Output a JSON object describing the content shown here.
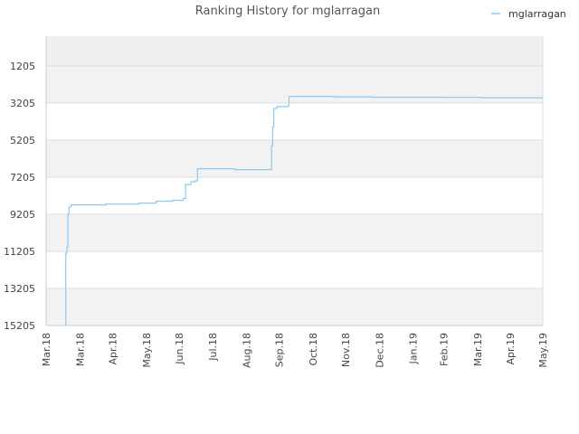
{
  "chart_data": {
    "type": "line",
    "title": "Ranking History for mglarragan",
    "legend": {
      "position": "top-right"
    },
    "grid": true,
    "xlabel": "",
    "ylabel": "",
    "x_axis": {
      "range": [
        "2018-03-01",
        "2019-05-31"
      ],
      "ticks": [
        {
          "date": "2018-03-01",
          "label": "Mar.18"
        },
        {
          "date": "2018-04-01",
          "label": "Mar.18"
        },
        {
          "date": "2018-05-01",
          "label": "Apr.18"
        },
        {
          "date": "2018-06-01",
          "label": "May.18"
        },
        {
          "date": "2018-07-01",
          "label": "Jun.18"
        },
        {
          "date": "2018-08-01",
          "label": "Jul.18"
        },
        {
          "date": "2018-09-01",
          "label": "Aug.18"
        },
        {
          "date": "2018-10-01",
          "label": "Sep.18"
        },
        {
          "date": "2018-11-01",
          "label": "Oct.18"
        },
        {
          "date": "2018-12-01",
          "label": "Nov.18"
        },
        {
          "date": "2019-01-01",
          "label": "Dec.18"
        },
        {
          "date": "2019-02-01",
          "label": "Jan.19"
        },
        {
          "date": "2019-03-01",
          "label": "Feb.19"
        },
        {
          "date": "2019-04-01",
          "label": "Mar.19"
        },
        {
          "date": "2019-05-01",
          "label": "Apr.19"
        },
        {
          "date": "2019-05-31",
          "label": "May.19"
        }
      ]
    },
    "y_axis": {
      "inverted": true,
      "range": [
        -400,
        15205
      ],
      "ticks": [
        1205,
        3205,
        5205,
        7205,
        9205,
        11205,
        13205,
        15205
      ]
    },
    "series": [
      {
        "name": "mglarragan",
        "color": "#90c8f0",
        "step": true,
        "x": [
          "2018-03-19",
          "2018-03-19",
          "2018-03-20",
          "2018-03-21",
          "2018-03-21",
          "2018-03-22",
          "2018-03-24",
          "2018-04-25",
          "2018-05-25",
          "2018-06-10",
          "2018-06-25",
          "2018-07-05",
          "2018-07-07",
          "2018-07-12",
          "2018-07-16",
          "2018-07-18",
          "2018-08-21",
          "2018-09-24",
          "2018-09-24",
          "2018-09-25",
          "2018-09-26",
          "2018-09-29",
          "2018-10-09",
          "2018-10-10",
          "2018-11-20",
          "2018-12-25",
          "2019-01-31",
          "2019-03-01",
          "2019-04-05",
          "2019-05-31"
        ],
        "values": [
          15205,
          11300,
          11000,
          10300,
          9200,
          8800,
          8700,
          8650,
          8600,
          8500,
          8450,
          8350,
          7600,
          7450,
          7400,
          6750,
          6800,
          6800,
          5500,
          4500,
          3500,
          3400,
          3350,
          2850,
          2870,
          2890,
          2890,
          2900,
          2920,
          2920
        ]
      }
    ]
  }
}
